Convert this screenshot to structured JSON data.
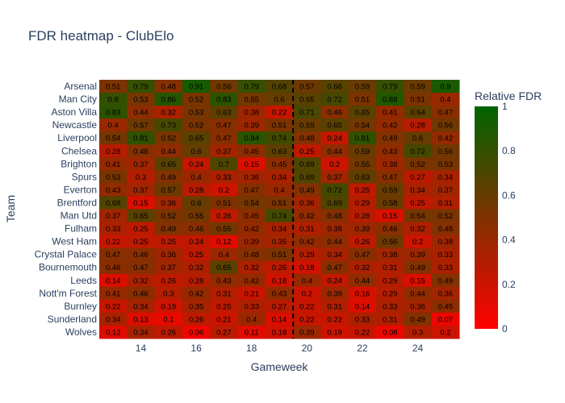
{
  "chart_data": {
    "type": "heatmap",
    "title": "FDR heatmap - ClubElo",
    "xlabel": "Gameweek",
    "ylabel": "Team",
    "x": [
      13,
      14,
      15,
      16,
      17,
      18,
      19,
      20,
      21,
      22,
      23,
      24,
      25
    ],
    "x_tick_labels": [
      "14",
      "16",
      "18",
      "20",
      "22",
      "24"
    ],
    "x_tick_values": [
      14,
      16,
      18,
      20,
      22,
      24
    ],
    "teams": [
      "Arsenal",
      "Man City",
      "Aston Villa",
      "Newcastle",
      "Liverpool",
      "Chelsea",
      "Brighton",
      "Spurs",
      "Everton",
      "Brentford",
      "Man Utd",
      "Fulham",
      "West Ham",
      "Crystal Palace",
      "Bournemouth",
      "Leeds",
      "Nott'm Forest",
      "Burnley",
      "Sunderland",
      "Wolves"
    ],
    "values": [
      [
        0.51,
        0.79,
        0.48,
        0.91,
        0.56,
        0.79,
        0.68,
        0.57,
        0.66,
        0.59,
        0.79,
        0.59,
        0.9
      ],
      [
        0.8,
        0.53,
        0.86,
        0.52,
        0.83,
        0.55,
        0.6,
        0.65,
        0.72,
        0.51,
        0.88,
        0.51,
        0.4
      ],
      [
        0.83,
        0.44,
        0.32,
        0.53,
        0.63,
        0.38,
        0.22,
        0.71,
        0.46,
        0.65,
        0.41,
        0.64,
        0.47
      ],
      [
        0.4,
        0.57,
        0.73,
        0.52,
        0.47,
        0.39,
        0.51,
        0.59,
        0.65,
        0.54,
        0.42,
        0.28,
        0.56
      ],
      [
        0.54,
        0.81,
        0.52,
        0.65,
        0.47,
        0.84,
        0.74,
        0.48,
        0.24,
        0.81,
        0.49,
        0.6,
        0.42
      ],
      [
        0.28,
        0.48,
        0.44,
        0.6,
        0.37,
        0.45,
        0.63,
        0.25,
        0.44,
        0.59,
        0.43,
        0.72,
        0.56
      ],
      [
        0.41,
        0.37,
        0.65,
        0.24,
        0.7,
        0.15,
        0.45,
        0.69,
        0.2,
        0.55,
        0.38,
        0.52,
        0.53
      ],
      [
        0.53,
        0.3,
        0.49,
        0.4,
        0.33,
        0.36,
        0.34,
        0.69,
        0.37,
        0.63,
        0.47,
        0.27,
        0.34
      ],
      [
        0.43,
        0.37,
        0.57,
        0.28,
        0.2,
        0.47,
        0.4,
        0.49,
        0.72,
        0.25,
        0.59,
        0.34,
        0.37
      ],
      [
        0.68,
        0.15,
        0.36,
        0.6,
        0.51,
        0.54,
        0.51,
        0.36,
        0.69,
        0.29,
        0.58,
        0.25,
        0.31
      ],
      [
        0.37,
        0.65,
        0.52,
        0.55,
        0.26,
        0.45,
        0.74,
        0.42,
        0.48,
        0.28,
        0.15,
        0.54,
        0.52
      ],
      [
        0.33,
        0.25,
        0.49,
        0.46,
        0.55,
        0.42,
        0.34,
        0.31,
        0.38,
        0.39,
        0.46,
        0.32,
        0.48
      ],
      [
        0.22,
        0.25,
        0.25,
        0.24,
        0.12,
        0.39,
        0.35,
        0.42,
        0.44,
        0.26,
        0.56,
        0.2,
        0.38
      ],
      [
        0.47,
        0.46,
        0.36,
        0.25,
        0.4,
        0.48,
        0.51,
        0.29,
        0.34,
        0.47,
        0.38,
        0.39,
        0.33
      ],
      [
        0.46,
        0.47,
        0.37,
        0.32,
        0.65,
        0.32,
        0.26,
        0.18,
        0.47,
        0.32,
        0.31,
        0.49,
        0.33
      ],
      [
        0.14,
        0.32,
        0.26,
        0.28,
        0.43,
        0.42,
        0.18,
        0.4,
        0.24,
        0.44,
        0.29,
        0.15,
        0.49
      ],
      [
        0.41,
        0.46,
        0.3,
        0.42,
        0.31,
        0.21,
        0.43,
        0.2,
        0.39,
        0.16,
        0.29,
        0.44,
        0.36
      ],
      [
        0.22,
        0.34,
        0.19,
        0.35,
        0.25,
        0.33,
        0.27,
        0.22,
        0.31,
        0.14,
        0.33,
        0.36,
        0.45
      ],
      [
        0.34,
        0.13,
        0.1,
        0.26,
        0.21,
        0.4,
        0.14,
        0.22,
        0.22,
        0.33,
        0.31,
        0.49,
        0.07
      ],
      [
        0.12,
        0.34,
        0.26,
        0.06,
        0.27,
        0.11,
        0.18,
        0.39,
        0.19,
        0.22,
        0.08,
        0.3,
        0.2
      ]
    ],
    "zlim": [
      0,
      1
    ],
    "colorscale": [
      "#ff0000",
      "#006400"
    ],
    "colorbar": {
      "title": "Relative FDR",
      "tick_values": [
        0,
        0.2,
        0.4,
        0.6,
        0.8,
        1
      ],
      "tick_labels": [
        "0",
        "0.2",
        "0.4",
        "0.6",
        "0.8",
        "1"
      ]
    },
    "divider_after_gameweek": 19,
    "grid": false,
    "legend": "colorbar-right"
  }
}
